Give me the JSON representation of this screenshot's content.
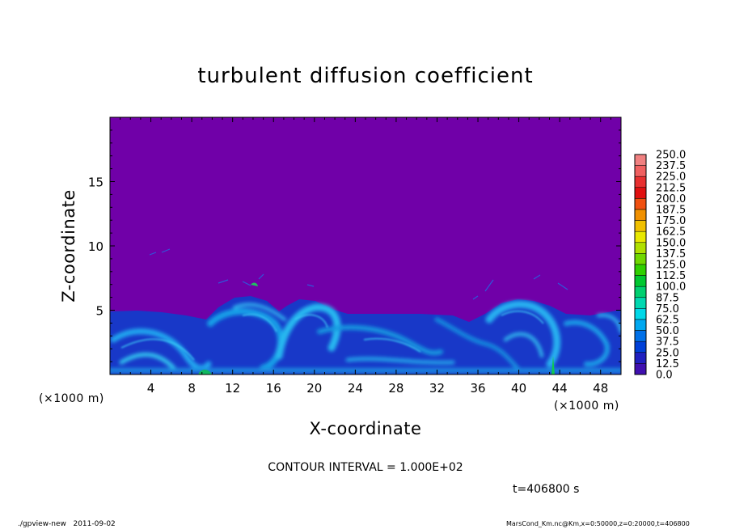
{
  "chart_data": {
    "type": "heatmap",
    "title": "turbulent diffusion coefficient",
    "xlabel": "X-coordinate",
    "ylabel": "Z-coordinate",
    "x_unit_label": "(×1000 m)",
    "y_unit_label": "(×1000 m)",
    "xlim": [
      0,
      50
    ],
    "ylim": [
      0,
      20
    ],
    "x_ticks": [
      4,
      8,
      12,
      16,
      20,
      24,
      28,
      32,
      36,
      40,
      44,
      48
    ],
    "y_ticks": [
      5,
      10,
      15
    ],
    "colorbar": {
      "levels": [
        "250.0",
        "237.5",
        "225.0",
        "212.5",
        "200.0",
        "187.5",
        "175.0",
        "162.5",
        "150.0",
        "137.5",
        "125.0",
        "112.5",
        "100.0",
        "87.5",
        "75.0",
        "62.5",
        "50.0",
        "37.5",
        "25.0",
        "12.5",
        "0.0"
      ],
      "colors": [
        "#f08080",
        "#f06060",
        "#e83030",
        "#e01010",
        "#f05010",
        "#f09000",
        "#f0c000",
        "#e8e800",
        "#b0e000",
        "#70d800",
        "#30d000",
        "#00c830",
        "#00d070",
        "#00d8b0",
        "#00d8e8",
        "#00a8f0",
        "#0070e8",
        "#0040d8",
        "#2020c0",
        "#4010b0",
        "#6a10a8"
      ]
    },
    "background_color": "#7000a8",
    "contour_interval": "CONTOUR INTERVAL = 1.000E+02",
    "time_label": "t=406800 s"
  },
  "footer": {
    "left": "./gpview-new   2011-09-02",
    "right": "MarsCond_Km.nc@Km,x=0:50000,z=0:20000,t=406800"
  }
}
